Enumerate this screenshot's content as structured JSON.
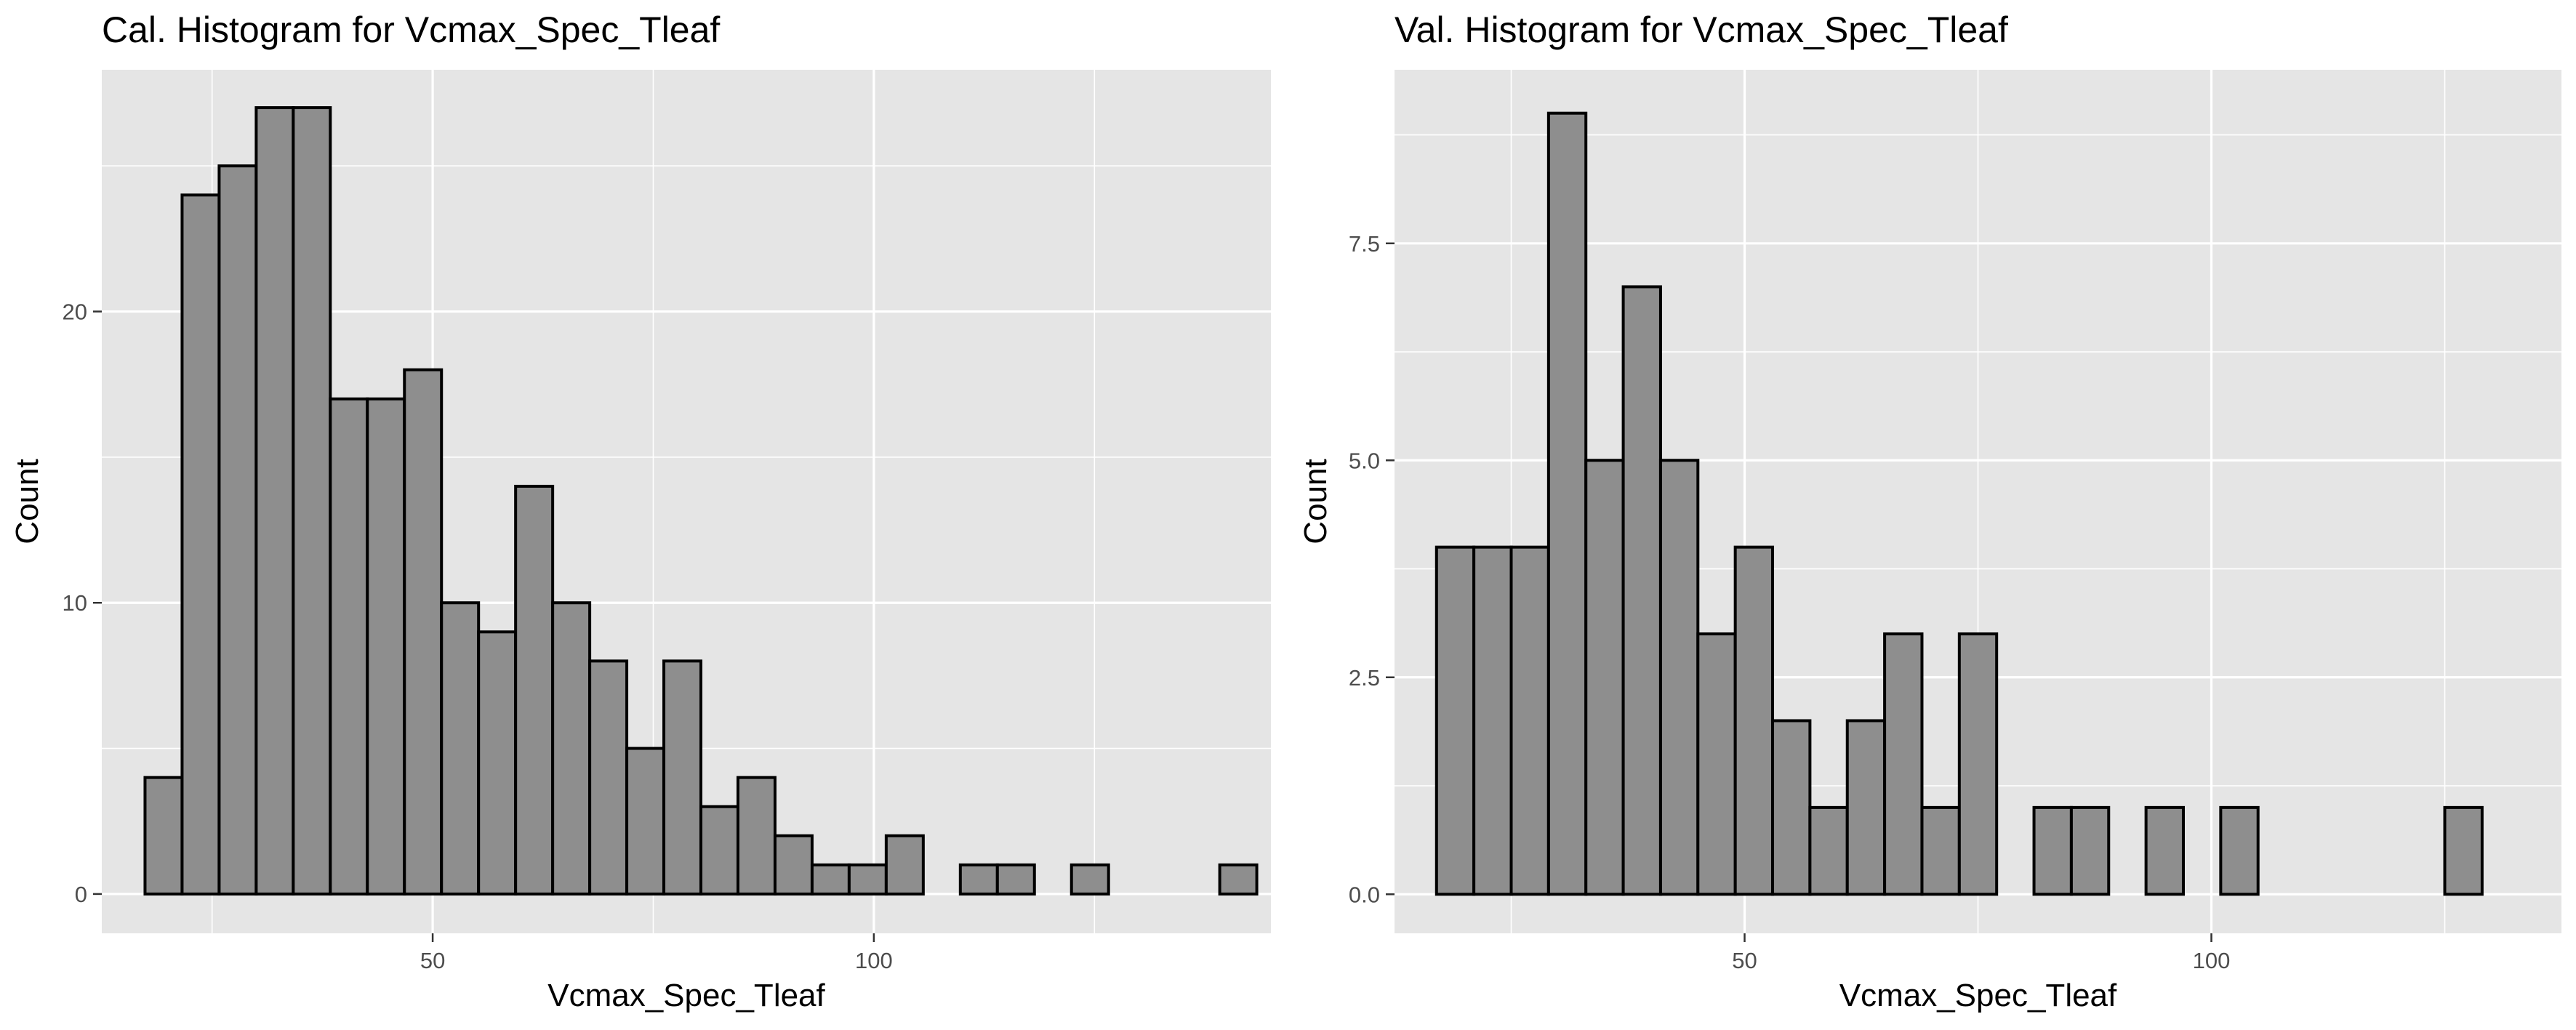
{
  "chart_data": [
    {
      "type": "bar",
      "title": "Cal. Histogram for Vcmax_Spec_Tleaf",
      "xlabel": "Vcmax_Spec_Tleaf",
      "ylabel": "Count",
      "xlim": [
        12.5,
        145
      ],
      "ylim": [
        -1.35,
        28.3
      ],
      "bin_width": 4.2,
      "bin_start": 17.4,
      "values": [
        4,
        24,
        25,
        27,
        27,
        17,
        17,
        18,
        10,
        9,
        14,
        10,
        8,
        5,
        8,
        3,
        4,
        2,
        1,
        1,
        2,
        0,
        1,
        1,
        0,
        1,
        0,
        0,
        0,
        1
      ],
      "xticks": [
        50,
        100
      ],
      "yticks": [
        0,
        10,
        20
      ],
      "ytick_labels": [
        "0",
        "10",
        "20"
      ],
      "grid": true,
      "colors": {
        "panel": "#e5e5e5",
        "bar_fill": "#8e8e8e",
        "bar_stroke": "#000000",
        "grid": "#ffffff"
      }
    },
    {
      "type": "bar",
      "title": "Val. Histogram for Vcmax_Spec_Tleaf",
      "xlabel": "Vcmax_Spec_Tleaf",
      "ylabel": "Count",
      "xlim": [
        12.5,
        137.5
      ],
      "ylim": [
        -0.45,
        9.5
      ],
      "bin_width": 4.0,
      "bin_start": 17.0,
      "values": [
        4,
        4,
        4,
        9,
        5,
        7,
        5,
        3,
        4,
        2,
        1,
        2,
        3,
        1,
        3,
        0,
        1,
        1,
        0,
        1,
        0,
        1,
        0,
        0,
        0,
        0,
        0,
        1
      ],
      "xticks": [
        50,
        100
      ],
      "yticks": [
        0,
        2.5,
        5,
        7.5
      ],
      "ytick_labels": [
        "0.0",
        "2.5",
        "5.0",
        "7.5"
      ],
      "grid": true,
      "colors": {
        "panel": "#e5e5e5",
        "bar_fill": "#8e8e8e",
        "bar_stroke": "#000000",
        "grid": "#ffffff"
      }
    }
  ]
}
